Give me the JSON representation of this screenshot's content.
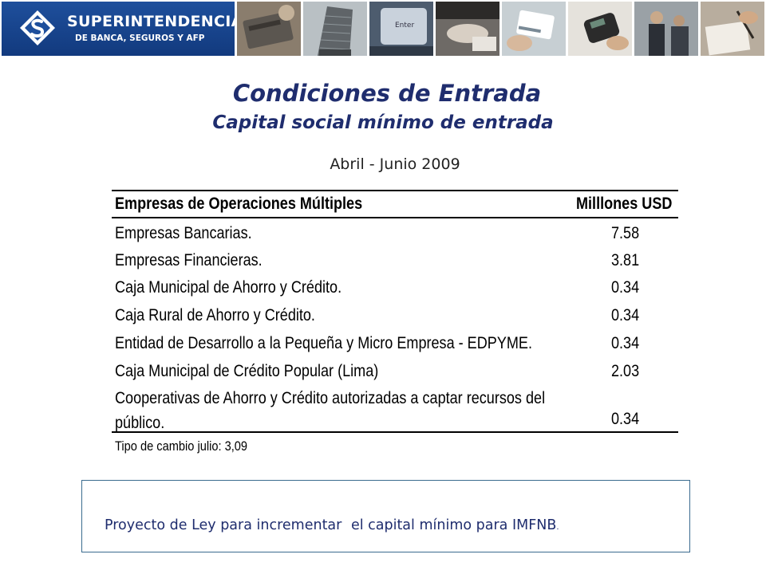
{
  "banner": {
    "logo_title": "SUPERINTENDENCIA",
    "logo_subtitle": "DE BANCA, SEGUROS Y AFP",
    "photos": [
      "credit-card-photo",
      "building-photo",
      "enter-key-photo",
      "handshake-photo",
      "card-photo",
      "payment-terminal-photo",
      "business-meeting-photo",
      "signing-photo"
    ],
    "photo_key_label": "Enter"
  },
  "heading": {
    "title": "Condiciones de Entrada",
    "subtitle": "Capital social mínimo de entrada",
    "period": "Abril - Junio 2009"
  },
  "table": {
    "header_left": "Empresas de Operaciones Múltiples",
    "header_right": "Milllones USD",
    "rows": [
      {
        "label": "Empresas Bancarias.",
        "value": "7.58"
      },
      {
        "label": "Empresas Financieras.",
        "value": "3.81"
      },
      {
        "label": "Caja Municipal de Ahorro y Crédito.",
        "value": "0.34"
      },
      {
        "label": "Caja Rural de Ahorro y Crédito.",
        "value": "0.34"
      },
      {
        "label": "Entidad de Desarrollo a la Pequeña y Micro Empresa - EDPYME.",
        "value": "0.34"
      },
      {
        "label": "Caja Municipal de Crédito Popular (Lima)",
        "value": "2.03"
      },
      {
        "label": "Cooperativas de Ahorro y Crédito autorizadas a captar recursos del público.",
        "value": "0.34"
      }
    ],
    "note": "Tipo de cambio julio: 3,09"
  },
  "project_box": {
    "text_a": "Proyecto de Ley para incrementar",
    "text_b": "el capital mínimo para IMFNB",
    "text_end": "."
  },
  "colors": {
    "heading": "#1f2d6e",
    "logo_bg": "#1e4f9c",
    "box_border": "#3a6b8f"
  }
}
